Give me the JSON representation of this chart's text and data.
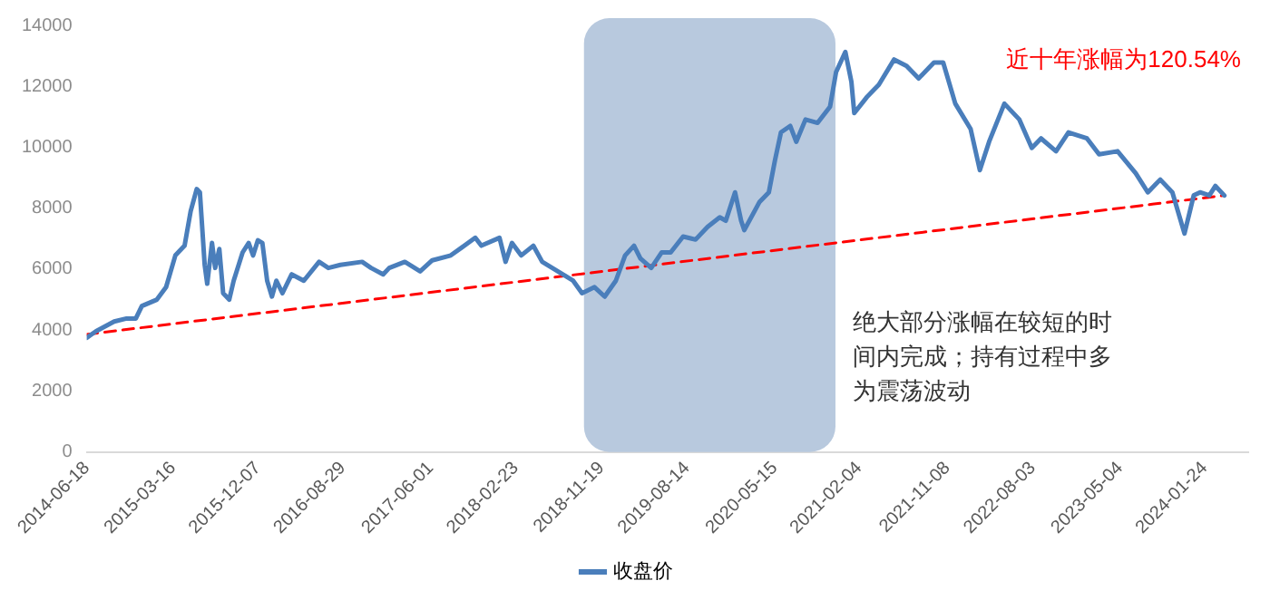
{
  "chart_data": {
    "type": "line",
    "xlim": [
      "2014-06-18",
      "2024-06-09"
    ],
    "ylim": [
      0,
      14000
    ],
    "xticks": [
      "2014-06-18",
      "2015-03-16",
      "2015-12-07",
      "2016-08-29",
      "2017-06-01",
      "2018-02-23",
      "2018-11-19",
      "2019-08-14",
      "2020-05-15",
      "2021-02-04",
      "2021-11-08",
      "2022-08-03",
      "2023-05-04",
      "2024-01-24"
    ],
    "yticks": [
      0,
      2000,
      4000,
      6000,
      8000,
      10000,
      12000,
      14000
    ],
    "grid": false,
    "legend": "bottom",
    "marker": "none",
    "annotations": [
      "近十年涨幅为120.54%",
      "绝大部分涨幅在较短的时间内完成；持有过程中多为震荡波动"
    ],
    "bands": [
      {
        "axis": "x",
        "from": "2018-09-25",
        "to": "2020-11-22",
        "color": "#b8c9de"
      }
    ],
    "series": [
      {
        "name": "收盘价",
        "color": "#4a7ebb",
        "line_style": "solid",
        "x": [
          "2014-06-18",
          "2014-07-17",
          "2014-09-12",
          "2014-10-21",
          "2014-11-19",
          "2014-12-08",
          "2015-01-24",
          "2015-02-22",
          "2015-03-23",
          "2015-04-21",
          "2015-05-10",
          "2015-05-29",
          "2015-06-08",
          "2015-06-23",
          "2015-07-01",
          "2015-07-16",
          "2015-07-26",
          "2015-08-08",
          "2015-08-20",
          "2015-09-08",
          "2015-09-22",
          "2015-10-20",
          "2015-11-08",
          "2015-11-22",
          "2015-12-07",
          "2015-12-21",
          "2016-01-05",
          "2016-01-20",
          "2016-02-03",
          "2016-02-22",
          "2016-03-22",
          "2016-04-29",
          "2016-06-16",
          "2016-07-15",
          "2016-08-22",
          "2016-10-29",
          "2016-11-26",
          "2017-01-03",
          "2017-01-22",
          "2017-03-12",
          "2017-04-29",
          "2017-06-06",
          "2017-08-03",
          "2017-10-19",
          "2017-11-07",
          "2018-01-03",
          "2018-01-22",
          "2018-02-11",
          "2018-03-12",
          "2018-04-19",
          "2018-05-17",
          "2018-07-05",
          "2018-08-22",
          "2018-09-19",
          "2018-10-28",
          "2018-11-29",
          "2019-01-03",
          "2019-02-01",
          "2019-03-01",
          "2019-03-21",
          "2019-04-24",
          "2019-05-27",
          "2019-06-24",
          "2019-08-02",
          "2019-09-10",
          "2019-10-18",
          "2019-11-25",
          "2019-12-14",
          "2020-01-12",
          "2020-01-31",
          "2020-02-10",
          "2020-03-29",
          "2020-04-27",
          "2020-05-16",
          "2020-06-04",
          "2020-07-03",
          "2020-07-22",
          "2020-08-20",
          "2020-09-27",
          "2020-11-05",
          "2020-11-24",
          "2020-12-23",
          "2021-01-11",
          "2021-01-20",
          "2021-02-28",
          "2021-04-07",
          "2021-05-25",
          "2021-07-03",
          "2021-08-10",
          "2021-09-27",
          "2021-10-26",
          "2021-12-03",
          "2022-01-20",
          "2022-02-18",
          "2022-03-19",
          "2022-05-06",
          "2022-06-22",
          "2022-07-31",
          "2022-08-29",
          "2022-10-15",
          "2022-11-23",
          "2023-01-20",
          "2023-02-27",
          "2023-04-26",
          "2023-06-22",
          "2023-07-30",
          "2023-09-07",
          "2023-10-15",
          "2023-11-22",
          "2023-12-21",
          "2024-01-10",
          "2024-02-08",
          "2024-02-27",
          "2024-03-26"
        ],
        "values": [
          3750,
          3960,
          4280,
          4380,
          4380,
          4790,
          5000,
          5410,
          6450,
          6770,
          7900,
          8630,
          8520,
          6140,
          5520,
          6860,
          6040,
          6660,
          5210,
          5000,
          5620,
          6550,
          6860,
          6450,
          6950,
          6860,
          5620,
          5100,
          5620,
          5210,
          5830,
          5620,
          6240,
          6040,
          6140,
          6240,
          6040,
          5830,
          6040,
          6240,
          5930,
          6290,
          6450,
          7030,
          6770,
          7030,
          6240,
          6860,
          6450,
          6770,
          6240,
          5930,
          5620,
          5210,
          5410,
          5100,
          5620,
          6450,
          6770,
          6350,
          6040,
          6550,
          6550,
          7070,
          6970,
          7390,
          7700,
          7590,
          8520,
          7590,
          7280,
          8210,
          8520,
          9560,
          10490,
          10700,
          10180,
          10910,
          10800,
          11330,
          12470,
          13130,
          12150,
          11120,
          11640,
          12050,
          12880,
          12670,
          12260,
          12780,
          12780,
          11430,
          10600,
          9250,
          10180,
          11430,
          10910,
          9980,
          10290,
          9870,
          10490,
          10290,
          9770,
          9870,
          9150,
          8520,
          8940,
          8520,
          7170,
          8420,
          8520,
          8420,
          8730,
          8420
        ]
      },
      {
        "color": "#ff0000",
        "line_style": "dashed",
        "x": [
          "2014-06-18",
          "2024-03-26"
        ],
        "values": [
          3860,
          8420
        ]
      }
    ]
  }
}
